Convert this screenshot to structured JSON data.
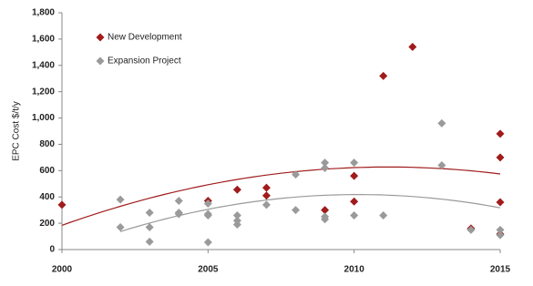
{
  "chart_data": {
    "type": "scatter",
    "ylabel": "EPC Cost $/t/y",
    "xlim": [
      2000,
      2015
    ],
    "xticks": [
      2000,
      2005,
      2010,
      2015
    ],
    "ylim": [
      0,
      1800
    ],
    "yticks": [
      0,
      200,
      400,
      600,
      800,
      {
        "value": 1000,
        "label": "1,000"
      },
      {
        "value": 1200,
        "label": "1,200"
      },
      {
        "value": 1400,
        "label": "1,400"
      },
      {
        "value": 1600,
        "label": "1,600"
      },
      {
        "value": 1800,
        "label": "1,800"
      }
    ],
    "grid": false,
    "legend": "upper left",
    "trendline": "polynomial",
    "series": [
      {
        "name": "New Development",
        "color": "#a01c1c",
        "x": [
          2000,
          2005,
          2006,
          2007,
          2007,
          2009,
          2010,
          2010,
          2011,
          2012,
          2014,
          2015,
          2015,
          2015,
          2015
        ],
        "y": [
          340,
          370,
          455,
          410,
          470,
          300,
          560,
          365,
          1320,
          1540,
          160,
          880,
          700,
          360,
          118
        ]
      },
      {
        "name": "Expansion Project",
        "color": "#9a9a9a",
        "x": [
          2002,
          2002,
          2003,
          2003,
          2003,
          2004,
          2004,
          2004,
          2005,
          2005,
          2005,
          2005,
          2006,
          2006,
          2006,
          2007,
          2008,
          2008,
          2009,
          2009,
          2009,
          2009,
          2010,
          2010,
          2011,
          2013,
          2013,
          2014,
          2015,
          2015
        ],
        "y": [
          380,
          170,
          280,
          170,
          60,
          370,
          280,
          270,
          350,
          270,
          260,
          55,
          260,
          220,
          190,
          340,
          570,
          300,
          660,
          620,
          250,
          230,
          660,
          260,
          260,
          960,
          640,
          150,
          150,
          110
        ]
      }
    ]
  }
}
